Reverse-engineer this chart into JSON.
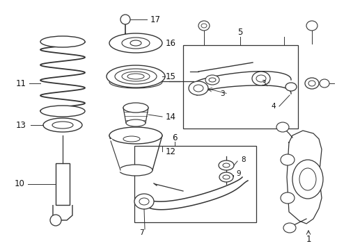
{
  "background_color": "#ffffff",
  "line_color": "#333333",
  "label_color": "#111111",
  "fig_width": 4.85,
  "fig_height": 3.57,
  "dpi": 100
}
